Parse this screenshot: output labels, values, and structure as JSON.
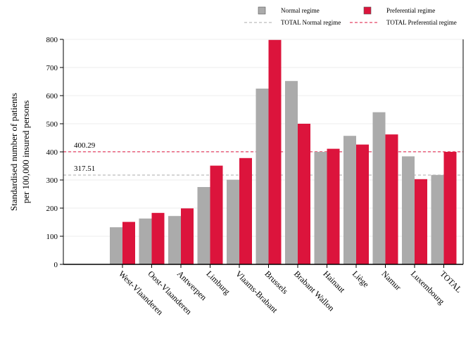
{
  "chart_data": {
    "type": "bar",
    "ylabel_lines": [
      "Standardised number of patients",
      "per 100,000 insured persons"
    ],
    "xlabel": "",
    "ylim": [
      0,
      800
    ],
    "yticks": [
      0,
      100,
      200,
      300,
      400,
      500,
      600,
      700,
      800
    ],
    "grid": true,
    "legend_position": "top",
    "categories": [
      "West-Vlaanderen",
      "Oost-Vlaanderen",
      "Antwerpen",
      "Limburg",
      "Vlaams-Brabant",
      "Brussels",
      "Brabant Wallon",
      "Hainaut",
      "Liège",
      "Namur",
      "Luxembourg",
      "TOTAL"
    ],
    "series": [
      {
        "name": "Normal regime",
        "color": "#ababab",
        "values": [
          132,
          163,
          172,
          275,
          301,
          625,
          652,
          400,
          457,
          541,
          384,
          318
        ]
      },
      {
        "name": "Preferential regime",
        "color": "#dc143c",
        "values": [
          151,
          183,
          199,
          351,
          378,
          798,
          500,
          411,
          426,
          462,
          303,
          400
        ]
      }
    ],
    "reference_lines": [
      {
        "name": "TOTAL Normal regime",
        "value": 317.51,
        "label": "317.51",
        "color": "#ababab"
      },
      {
        "name": "TOTAL Preferential regime",
        "value": 400.29,
        "label": "400.29",
        "color": "#dc143c"
      }
    ]
  }
}
